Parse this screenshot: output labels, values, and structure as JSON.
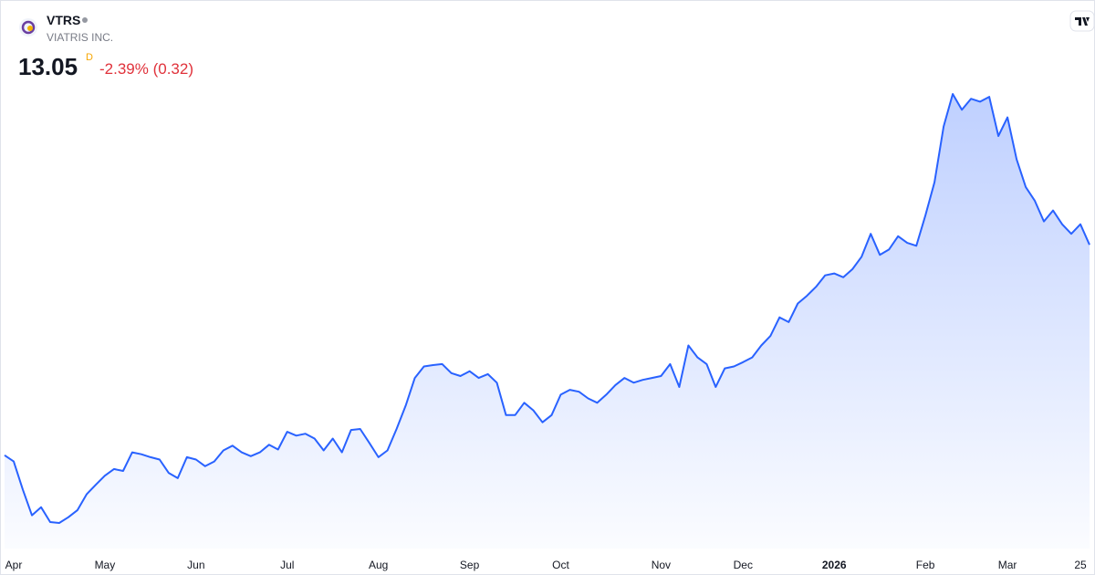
{
  "header": {
    "symbol": "VTRS",
    "company": "VIATRIS INC.",
    "price": "13.05",
    "interval": "D",
    "change": "-2.39% (0.32)"
  },
  "chart_data": {
    "type": "area",
    "color": "#2962ff",
    "categories": [
      null,
      "Apr",
      null,
      null,
      null,
      null,
      null,
      null,
      null,
      null,
      null,
      "May",
      null,
      null,
      null,
      null,
      null,
      null,
      null,
      null,
      null,
      "Jun",
      null,
      null,
      null,
      null,
      null,
      null,
      null,
      null,
      null,
      "Jul",
      null,
      null,
      null,
      null,
      null,
      null,
      null,
      null,
      null,
      "Aug",
      null,
      null,
      null,
      null,
      null,
      null,
      null,
      null,
      null,
      "Sep",
      null,
      null,
      null,
      null,
      null,
      null,
      null,
      null,
      null,
      "Oct",
      null,
      null,
      null,
      null,
      null,
      null,
      null,
      null,
      null,
      null,
      "Nov",
      null,
      null,
      null,
      null,
      null,
      null,
      null,
      null,
      "Dec",
      null,
      null,
      null,
      null,
      null,
      null,
      null,
      null,
      null,
      "2026",
      null,
      null,
      null,
      null,
      null,
      null,
      null,
      null,
      null,
      "Feb",
      null,
      null,
      null,
      null,
      null,
      null,
      null,
      null,
      "Mar",
      null,
      null,
      null,
      null,
      null,
      null,
      null,
      "25",
      null
    ],
    "values": [
      8.64,
      8.51,
      7.92,
      7.38,
      7.55,
      7.24,
      7.22,
      7.34,
      7.49,
      7.82,
      8.02,
      8.21,
      8.35,
      8.31,
      8.7,
      8.66,
      8.6,
      8.55,
      8.27,
      8.16,
      8.6,
      8.55,
      8.41,
      8.51,
      8.74,
      8.84,
      8.7,
      8.62,
      8.7,
      8.86,
      8.76,
      9.13,
      9.05,
      9.09,
      8.99,
      8.74,
      8.99,
      8.7,
      9.17,
      9.19,
      8.9,
      8.6,
      8.74,
      9.19,
      9.68,
      10.26,
      10.5,
      10.53,
      10.55,
      10.36,
      10.3,
      10.4,
      10.26,
      10.34,
      10.16,
      9.48,
      9.48,
      9.74,
      9.58,
      9.33,
      9.48,
      9.91,
      10.01,
      9.97,
      9.83,
      9.74,
      9.91,
      10.11,
      10.26,
      10.16,
      10.22,
      10.26,
      10.3,
      10.55,
      10.07,
      10.94,
      10.69,
      10.55,
      10.07,
      10.46,
      10.5,
      10.59,
      10.69,
      10.94,
      11.14,
      11.53,
      11.43,
      11.82,
      11.98,
      12.17,
      12.41,
      12.45,
      12.37,
      12.54,
      12.8,
      13.28,
      12.84,
      12.95,
      13.23,
      13.09,
      13.03,
      13.67,
      14.36,
      15.53,
      16.21,
      15.88,
      16.11,
      16.05,
      16.15,
      15.33,
      15.72,
      14.84,
      14.26,
      13.97,
      13.54,
      13.77,
      13.48,
      13.28,
      13.48,
      13.05
    ]
  }
}
